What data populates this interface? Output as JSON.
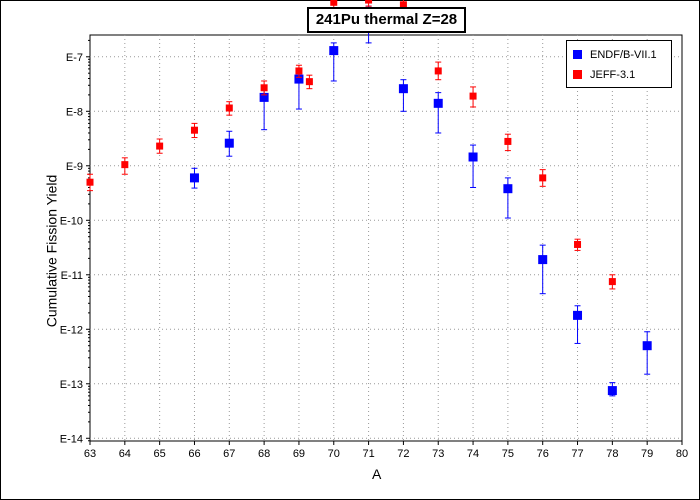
{
  "chart_data": {
    "type": "scatter",
    "title": "241Pu thermal Z=28",
    "xlabel": "A",
    "ylabel": "Cumulative Fission Yield",
    "yscale": "log",
    "xlim": [
      63,
      80
    ],
    "ylim_exponent": [
      -14.05,
      -6.6
    ],
    "x_ticks": [
      "63",
      "64",
      "65",
      "66",
      "67",
      "68",
      "69",
      "70",
      "71",
      "72",
      "73",
      "74",
      "75",
      "76",
      "77",
      "78",
      "79",
      "80"
    ],
    "y_ticks": [
      "E-7",
      "E-8",
      "E-9",
      "E-10",
      "E-11",
      "E-12",
      "E-13",
      "E-14"
    ],
    "grid": true,
    "legend_position": "top-right",
    "series": [
      {
        "name": "ENDF/B-VII.1",
        "color": "#0000ff",
        "marker": "square",
        "points": [
          {
            "x": 66,
            "y": 6e-10,
            "lo": 3.9e-10,
            "hi": 9e-10
          },
          {
            "x": 67,
            "y": 2.6e-09,
            "lo": 1.5e-09,
            "hi": 4.3e-09
          },
          {
            "x": 68,
            "y": 1.8e-08,
            "lo": 4.6e-09,
            "hi": 2.5e-08
          },
          {
            "x": 69,
            "y": 3.9e-08,
            "lo": 1.1e-08,
            "hi": 5.5e-08
          },
          {
            "x": 70,
            "y": 1.3e-07,
            "lo": 3.6e-08,
            "hi": 1.8e-07
          },
          {
            "x": 71,
            "y": 6.2e-07,
            "lo": 1.8e-07,
            "hi": 8.5e-07
          },
          {
            "x": 72,
            "y": 2.6e-08,
            "lo": 1e-08,
            "hi": 3.8e-08
          },
          {
            "x": 73,
            "y": 1.4e-08,
            "lo": 4e-09,
            "hi": 2.2e-08
          },
          {
            "x": 74,
            "y": 1.45e-09,
            "lo": 4e-10,
            "hi": 2.4e-09
          },
          {
            "x": 75,
            "y": 3.8e-10,
            "lo": 1.1e-10,
            "hi": 6e-10
          },
          {
            "x": 76,
            "y": 1.9e-11,
            "lo": 4.5e-12,
            "hi": 3.5e-11
          },
          {
            "x": 77,
            "y": 1.8e-12,
            "lo": 5.5e-13,
            "hi": 2.7e-12
          },
          {
            "x": 78,
            "y": 7.5e-14,
            "lo": 6e-14,
            "hi": 1.05e-13
          },
          {
            "x": 79,
            "y": 5e-13,
            "lo": 1.5e-13,
            "hi": 9e-13
          }
        ]
      },
      {
        "name": "JEFF-3.1",
        "color": "#ff0000",
        "marker": "square",
        "points": [
          {
            "x": 63,
            "y": 5e-10,
            "lo": 3.5e-10,
            "hi": 7e-10
          },
          {
            "x": 64,
            "y": 1.05e-09,
            "lo": 7e-10,
            "hi": 1.4e-09
          },
          {
            "x": 65,
            "y": 2.3e-09,
            "lo": 1.7e-09,
            "hi": 3.1e-09
          },
          {
            "x": 66,
            "y": 4.5e-09,
            "lo": 3.3e-09,
            "hi": 6e-09
          },
          {
            "x": 67,
            "y": 1.15e-08,
            "lo": 8.5e-09,
            "hi": 1.5e-08
          },
          {
            "x": 68,
            "y": 2.7e-08,
            "lo": 2e-08,
            "hi": 3.6e-08
          },
          {
            "x": 69,
            "y": 5.5e-08,
            "lo": 4.2e-08,
            "hi": 7e-08
          },
          {
            "x": 69.3,
            "y": 3.5e-08,
            "lo": 2.6e-08,
            "hi": 4.6e-08
          },
          {
            "x": 70,
            "y": 1e-06,
            "lo": 7.5e-07,
            "hi": 1.3e-06
          },
          {
            "x": 71,
            "y": 1.1e-06,
            "lo": 8.5e-07,
            "hi": 1.4e-06
          },
          {
            "x": 72,
            "y": 9e-07,
            "lo": 5e-07,
            "hi": 1.35e-06
          },
          {
            "x": 73,
            "y": 5.5e-08,
            "lo": 3.8e-08,
            "hi": 8e-08
          },
          {
            "x": 74,
            "y": 1.9e-08,
            "lo": 1.2e-08,
            "hi": 2.8e-08
          },
          {
            "x": 75,
            "y": 2.8e-09,
            "lo": 1.9e-09,
            "hi": 3.8e-09
          },
          {
            "x": 76,
            "y": 6e-10,
            "lo": 4.2e-10,
            "hi": 8.5e-10
          },
          {
            "x": 77,
            "y": 3.6e-11,
            "lo": 2.8e-11,
            "hi": 4.5e-11
          },
          {
            "x": 78,
            "y": 7.5e-12,
            "lo": 5.5e-12,
            "hi": 1e-11
          }
        ]
      }
    ]
  }
}
